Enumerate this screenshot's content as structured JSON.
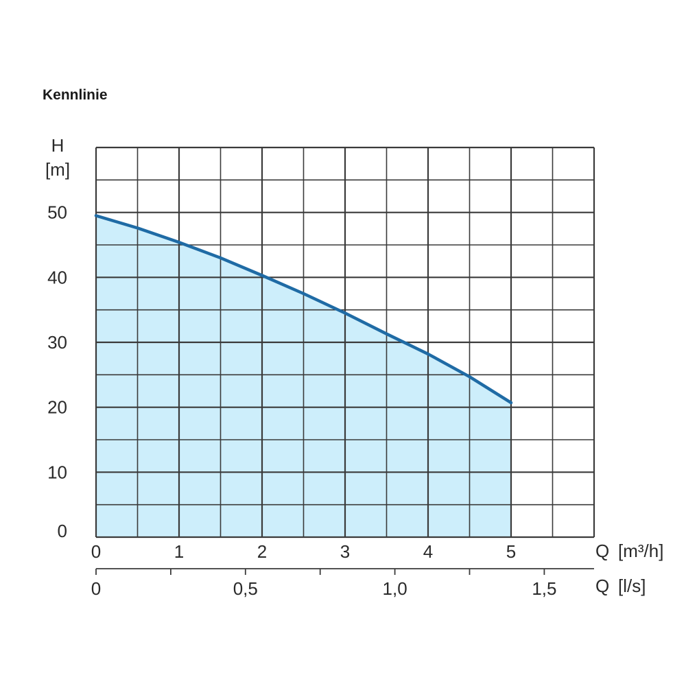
{
  "chart_data": {
    "type": "area",
    "title": "Kennlinie",
    "ylabel": "H",
    "yunit": "[m]",
    "xlabel": "Q",
    "xunit": "[m³/h]",
    "x2label": "Q",
    "x2unit": "[l/s]",
    "xlim": [
      0,
      6
    ],
    "ylim": [
      0,
      60
    ],
    "x_ticks": [
      "0",
      "1",
      "2",
      "3",
      "4",
      "5"
    ],
    "y_ticks": [
      "0",
      "10",
      "20",
      "30",
      "40",
      "50"
    ],
    "x2_ticks": [
      "0",
      "0,5",
      "1,0",
      "1,5"
    ],
    "x2_tick_values": [
      0,
      0.5,
      1.0,
      1.5
    ],
    "x2_minor_tick_values": [
      0.25,
      0.75,
      1.25
    ],
    "grid": true,
    "series": [
      {
        "x": [
          0,
          0.5,
          1,
          1.5,
          2,
          2.5,
          3,
          3.5,
          4,
          4.5,
          5
        ],
        "y": [
          49.5,
          47.6,
          45.4,
          43.0,
          40.3,
          37.5,
          34.5,
          31.3,
          28.2,
          24.7,
          20.7
        ],
        "color": "#1f6ba5",
        "fill": "#cdeefb"
      }
    ]
  }
}
